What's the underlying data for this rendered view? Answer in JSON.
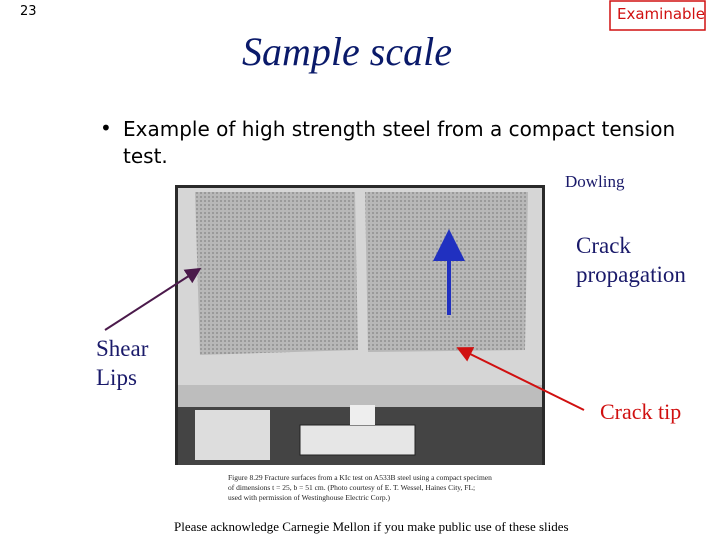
{
  "slide": {
    "number": "23",
    "badge": "Examinable",
    "title": "Sample scale",
    "bullet": [
      "Example of high strength steel from a compact tension",
      "test."
    ],
    "source": "Dowling",
    "labels": {
      "crack_propagation": [
        "Crack",
        "propagation"
      ],
      "shear_lips": [
        "Shear",
        "Lips"
      ],
      "crack_tip": "Crack tip"
    },
    "figure_caption": [
      "Figure 8.29   Fracture surfaces from a KIc test on A533B steel using a compact specimen",
      "of dimensions t = 25, b = 51 cm. (Photo courtesy of E. T. Wessel, Haines City, FL;",
      "used with permission of Westinghouse Electric Corp.)"
    ],
    "footer": "Please acknowledge Carnegie Mellon if you make public use of these slides"
  }
}
